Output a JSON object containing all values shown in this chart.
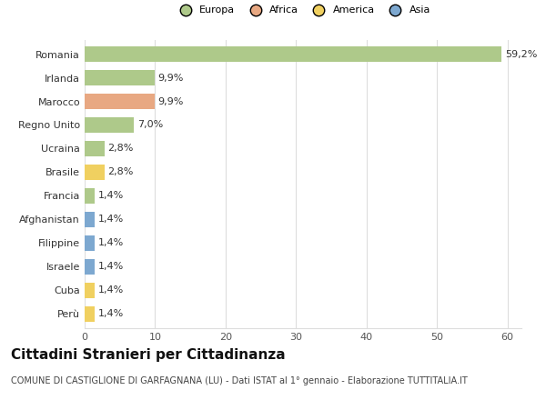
{
  "categories": [
    "Romania",
    "Irlanda",
    "Marocco",
    "Regno Unito",
    "Ucraina",
    "Brasile",
    "Francia",
    "Afghanistan",
    "Filippine",
    "Israele",
    "Cuba",
    "Perù"
  ],
  "values": [
    59.2,
    9.9,
    9.9,
    7.0,
    2.8,
    2.8,
    1.4,
    1.4,
    1.4,
    1.4,
    1.4,
    1.4
  ],
  "colors": [
    "#aec98a",
    "#aec98a",
    "#e8a882",
    "#aec98a",
    "#aec98a",
    "#f0d060",
    "#aec98a",
    "#7da8d0",
    "#7da8d0",
    "#7da8d0",
    "#f0d060",
    "#f0d060"
  ],
  "legend_labels": [
    "Europa",
    "Africa",
    "America",
    "Asia"
  ],
  "legend_colors": [
    "#aec98a",
    "#e8a882",
    "#f0d060",
    "#7da8d0"
  ],
  "title": "Cittadini Stranieri per Cittadinanza",
  "subtitle": "COMUNE DI CASTIGLIONE DI GARFAGNANA (LU) - Dati ISTAT al 1° gennaio - Elaborazione TUTTITALIA.IT",
  "xlim": [
    0,
    62
  ],
  "xticks": [
    0,
    10,
    20,
    30,
    40,
    50,
    60
  ],
  "background_color": "#ffffff",
  "grid_color": "#dddddd",
  "bar_height": 0.65,
  "title_fontsize": 11,
  "subtitle_fontsize": 7,
  "label_fontsize": 8,
  "tick_fontsize": 8
}
